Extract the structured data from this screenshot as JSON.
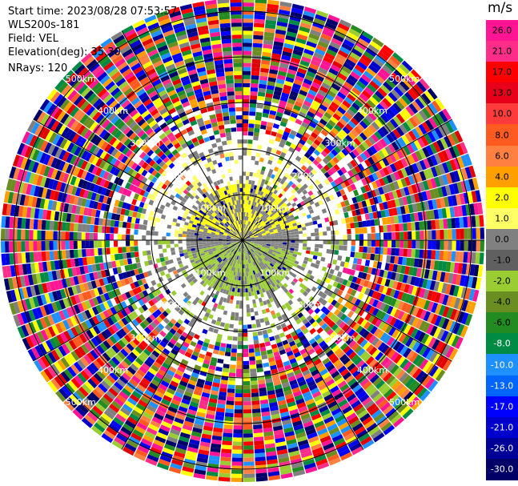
{
  "info": {
    "start_time": "Start time: 2023/08/28 07:53:57",
    "instrument": "WLS200s-181",
    "field": "Field: VEL",
    "elevation": "Elevation(deg): 35.30",
    "nrays": "NRays: 120"
  },
  "colorbar": {
    "unit": "m/s",
    "ticks": [
      "26.0",
      "21.0",
      "17.0",
      "13.0",
      "10.0",
      "8.0",
      "6.0",
      "4.0",
      "2.0",
      "1.0",
      "0.0",
      "-1.0",
      "-2.0",
      "-4.0",
      "-6.0",
      "-8.0",
      "-10.0",
      "-13.0",
      "-17.0",
      "-21.0",
      "-26.0",
      "-30.0"
    ],
    "colors": [
      "#ff1493",
      "#ff2d8a",
      "#ff0000",
      "#e8001a",
      "#ff3a3a",
      "#ff5a20",
      "#ff8040",
      "#ffa000",
      "#ffff00",
      "#ffff66",
      "#808080",
      "#606060",
      "#9acd32",
      "#6b8e23",
      "#228b22",
      "#008b45",
      "#1e90ff",
      "#0066ff",
      "#0000ff",
      "#0000cc",
      "#000099",
      "#000066"
    ]
  },
  "chart_data": {
    "type": "heatmap",
    "title": "",
    "ring_labels": [
      "100km",
      "200km",
      "300km",
      "400km",
      "500km"
    ],
    "rays": 120,
    "field": "VEL",
    "units": "m/s",
    "vmin": -30.0,
    "vmax": 26.0
  }
}
